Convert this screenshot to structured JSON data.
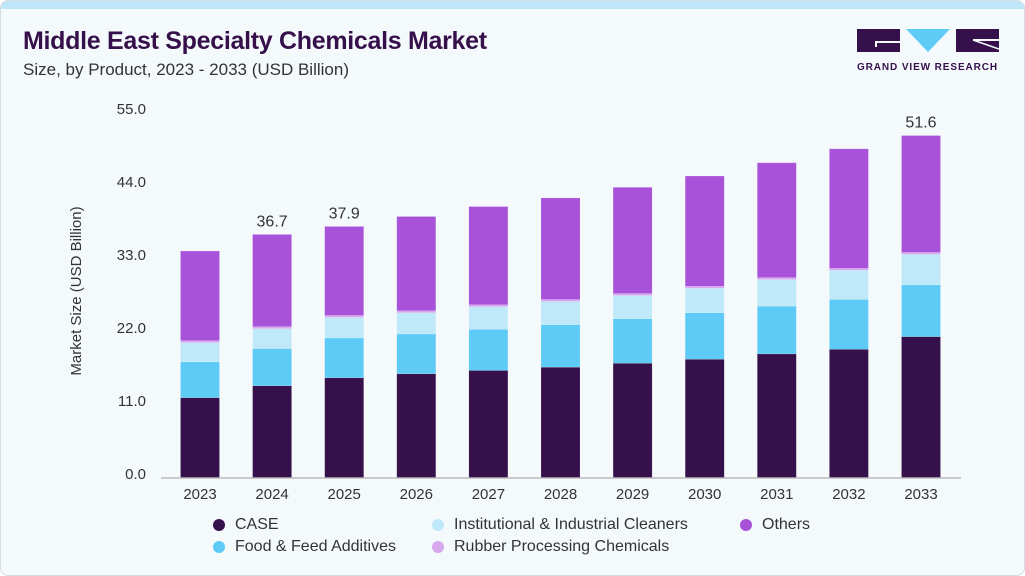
{
  "header": {
    "title": "Middle East Specialty Chemicals Market",
    "subtitle": "Size, by Product, 2023 - 2033 (USD Billion)"
  },
  "logo": {
    "text": "GRAND VIEW RESEARCH",
    "colors": {
      "dark": "#36104a",
      "light": "#5ecbf6"
    }
  },
  "chart_data": {
    "type": "bar",
    "stacked": true,
    "title": "Middle East Specialty Chemicals Market",
    "subtitle": "Size, by Product, 2023 - 2033 (USD Billion)",
    "xlabel": "",
    "ylabel": "Market Size (USD Billion)",
    "ylim": [
      0,
      55
    ],
    "yticks": [
      "0.0",
      "11.0",
      "22.0",
      "33.0",
      "44.0",
      "55.0"
    ],
    "grid": false,
    "legend_position": "bottom",
    "categories": [
      "2023",
      "2024",
      "2025",
      "2026",
      "2027",
      "2028",
      "2029",
      "2030",
      "2031",
      "2032",
      "2033"
    ],
    "series": [
      {
        "name": "CASE",
        "color": "#36104a",
        "values": [
          12.1,
          13.9,
          15.1,
          15.7,
          16.2,
          16.7,
          17.3,
          17.9,
          18.7,
          19.4,
          21.3
        ]
      },
      {
        "name": "Food & Feed Additives",
        "color": "#5ecbf6",
        "values": [
          5.4,
          5.6,
          6.0,
          6.0,
          6.2,
          6.4,
          6.7,
          7.0,
          7.2,
          7.5,
          7.8
        ]
      },
      {
        "name": "Institutional & Industrial Cleaners",
        "color": "#bfe9f9",
        "values": [
          2.9,
          3.0,
          3.1,
          3.2,
          3.4,
          3.5,
          3.5,
          3.7,
          4.0,
          4.4,
          4.6
        ]
      },
      {
        "name": "Rubber Processing Chemicals",
        "color": "#d8a8ee",
        "values": [
          0.3,
          0.3,
          0.3,
          0.3,
          0.3,
          0.3,
          0.3,
          0.3,
          0.3,
          0.3,
          0.3
        ]
      },
      {
        "name": "Others",
        "color": "#a752d8",
        "values": [
          13.5,
          13.9,
          13.4,
          14.2,
          14.8,
          15.3,
          16.0,
          16.6,
          17.3,
          18.0,
          17.6
        ]
      }
    ],
    "data_labels": [
      {
        "category": "2024",
        "text": "36.7"
      },
      {
        "category": "2025",
        "text": "37.9"
      },
      {
        "category": "2033",
        "text": "51.6"
      }
    ]
  }
}
